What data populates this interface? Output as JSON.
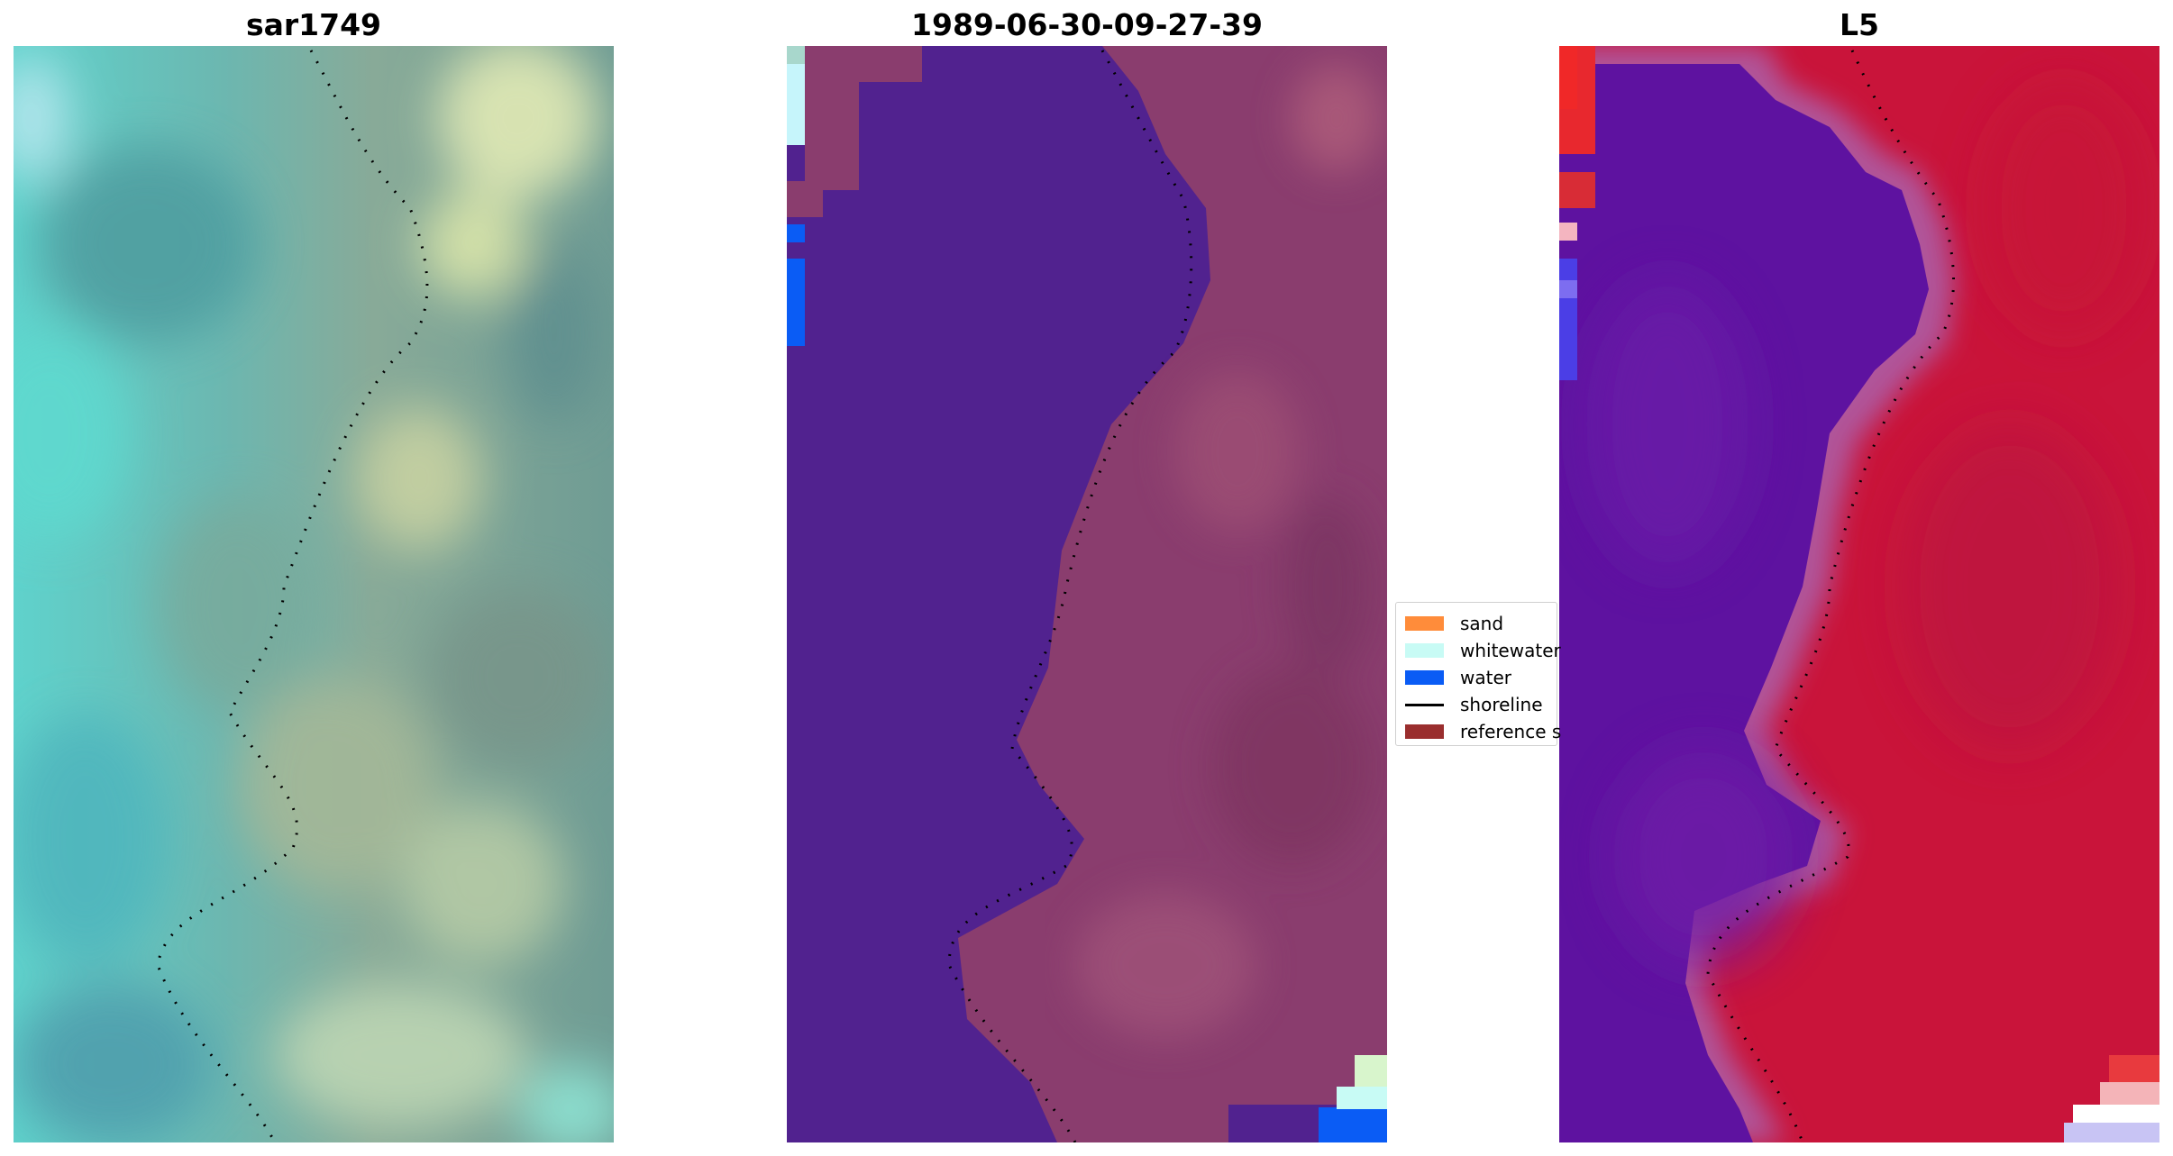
{
  "panels": [
    {
      "id": "left",
      "title": "sar1749"
    },
    {
      "id": "middle",
      "title": "1989-06-30-09-27-39"
    },
    {
      "id": "right",
      "title": "L5"
    }
  ],
  "legend": {
    "items": [
      {
        "label": "sand",
        "color": "#ff8c3a",
        "kind": "patch"
      },
      {
        "label": "whitewater",
        "color": "#c8fbf5",
        "kind": "patch"
      },
      {
        "label": "water",
        "color": "#0a5cf5",
        "kind": "patch"
      },
      {
        "label": "shoreline",
        "color": "#000000",
        "kind": "line"
      },
      {
        "label": "reference s",
        "color": "#9a2e2e",
        "kind": "patch"
      }
    ]
  },
  "colors": {
    "water_class": "#51228f",
    "land_overlay": "#8a3d6e",
    "right_water": "#5e12a0",
    "right_land": "#c9143a",
    "shoreline_dots": "#000000"
  }
}
